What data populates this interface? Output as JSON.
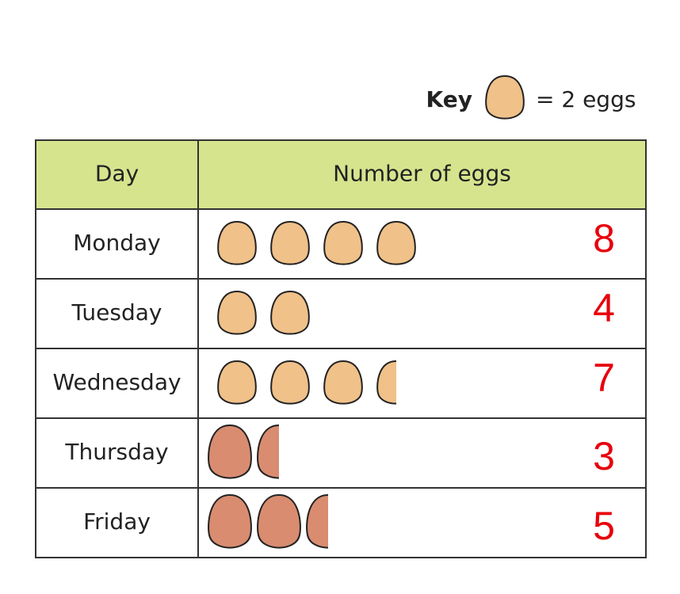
{
  "chart_data": {
    "type": "pictogram",
    "key": {
      "label": "Key",
      "text": "= 2 eggs",
      "value": 2,
      "color": "#f0c189"
    },
    "headers": [
      "Day",
      "Number of eggs"
    ],
    "categories": [
      "Monday",
      "Tuesday",
      "Wednesday",
      "Thursday",
      "Friday"
    ],
    "values": [
      8,
      4,
      7,
      3,
      5
    ],
    "colors": [
      "#f0c189",
      "#f0c189",
      "#f0c189",
      "#d98c70",
      "#d98c70"
    ],
    "label_color": "#e8000b",
    "header_color": "#d7e48e"
  }
}
